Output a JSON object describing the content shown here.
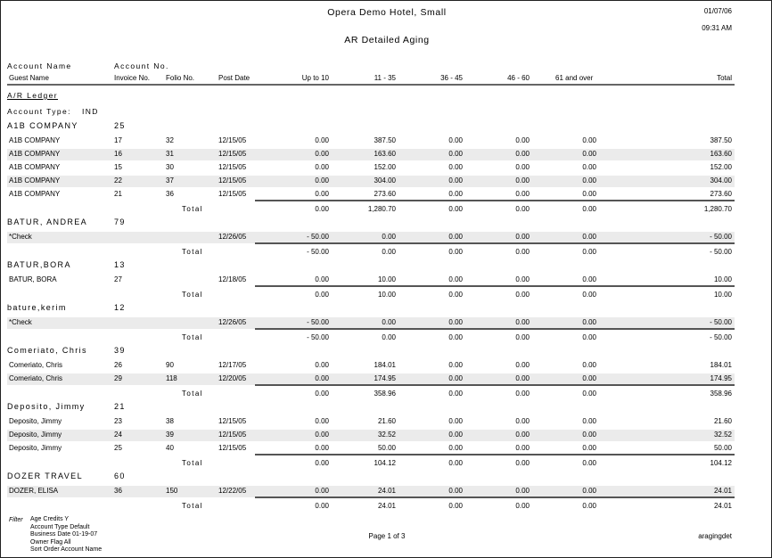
{
  "header": {
    "hotel": "Opera Demo Hotel, Small",
    "report_title": "AR Detailed Aging",
    "date": "01/07/06",
    "time": "09:31 AM"
  },
  "columns": {
    "account_name": "Account Name",
    "account_no": "Account No.",
    "guest_name": "Guest Name",
    "invoice_no": "Invoice No.",
    "folio_no": "Folio No.",
    "post_date": "Post Date",
    "up_to_10": "Up to 10",
    "d11_35": "11 - 35",
    "d36_45": "36 - 45",
    "d46_60": "46 - 60",
    "d61_over": "61 and over",
    "total": "Total"
  },
  "ledger_label": "A/R Ledger",
  "account_type_label": "Account Type:",
  "account_type": "IND",
  "total_label": "Total",
  "groups": [
    {
      "name": "A1B COMPANY",
      "account_no": "25",
      "rows": [
        {
          "guest": "A1B COMPANY",
          "invoice": "17",
          "folio": "32",
          "date": "12/15/05",
          "v": [
            "0.00",
            "387.50",
            "0.00",
            "0.00",
            "0.00",
            "387.50"
          ],
          "shaded": false
        },
        {
          "guest": "A1B COMPANY",
          "invoice": "16",
          "folio": "31",
          "date": "12/15/05",
          "v": [
            "0.00",
            "163.60",
            "0.00",
            "0.00",
            "0.00",
            "163.60"
          ],
          "shaded": true
        },
        {
          "guest": "A1B COMPANY",
          "invoice": "15",
          "folio": "30",
          "date": "12/15/05",
          "v": [
            "0.00",
            "152.00",
            "0.00",
            "0.00",
            "0.00",
            "152.00"
          ],
          "shaded": false
        },
        {
          "guest": "A1B COMPANY",
          "invoice": "22",
          "folio": "37",
          "date": "12/15/05",
          "v": [
            "0.00",
            "304.00",
            "0.00",
            "0.00",
            "0.00",
            "304.00"
          ],
          "shaded": true
        },
        {
          "guest": "A1B COMPANY",
          "invoice": "21",
          "folio": "36",
          "date": "12/15/05",
          "v": [
            "0.00",
            "273.60",
            "0.00",
            "0.00",
            "0.00",
            "273.60"
          ],
          "shaded": false
        }
      ],
      "totals": [
        "0.00",
        "1,280.70",
        "0.00",
        "0.00",
        "0.00",
        "1,280.70"
      ]
    },
    {
      "name": "BATUR, ANDREA",
      "account_no": "79",
      "rows": [
        {
          "guest": "*Check",
          "invoice": "",
          "folio": "",
          "date": "12/26/05",
          "v": [
            "- 50.00",
            "0.00",
            "0.00",
            "0.00",
            "0.00",
            "- 50.00"
          ],
          "shaded": true
        }
      ],
      "totals": [
        "- 50.00",
        "0.00",
        "0.00",
        "0.00",
        "0.00",
        "- 50.00"
      ]
    },
    {
      "name": "BATUR,BORA",
      "account_no": "13",
      "rows": [
        {
          "guest": "BATUR, BORA",
          "invoice": "27",
          "folio": "",
          "date": "12/18/05",
          "v": [
            "0.00",
            "10.00",
            "0.00",
            "0.00",
            "0.00",
            "10.00"
          ],
          "shaded": false
        }
      ],
      "totals": [
        "0.00",
        "10.00",
        "0.00",
        "0.00",
        "0.00",
        "10.00"
      ]
    },
    {
      "name": "bature,kerim",
      "account_no": "12",
      "rows": [
        {
          "guest": "*Check",
          "invoice": "",
          "folio": "",
          "date": "12/26/05",
          "v": [
            "- 50.00",
            "0.00",
            "0.00",
            "0.00",
            "0.00",
            "- 50.00"
          ],
          "shaded": true
        }
      ],
      "totals": [
        "- 50.00",
        "0.00",
        "0.00",
        "0.00",
        "0.00",
        "- 50.00"
      ]
    },
    {
      "name": "Comeriato, Chris",
      "account_no": "39",
      "rows": [
        {
          "guest": "Comeriato, Chris",
          "invoice": "26",
          "folio": "90",
          "date": "12/17/05",
          "v": [
            "0.00",
            "184.01",
            "0.00",
            "0.00",
            "0.00",
            "184.01"
          ],
          "shaded": false
        },
        {
          "guest": "Comeriato, Chris",
          "invoice": "29",
          "folio": "118",
          "date": "12/20/05",
          "v": [
            "0.00",
            "174.95",
            "0.00",
            "0.00",
            "0.00",
            "174.95"
          ],
          "shaded": true
        }
      ],
      "totals": [
        "0.00",
        "358.96",
        "0.00",
        "0.00",
        "0.00",
        "358.96"
      ]
    },
    {
      "name": "Deposito, Jimmy",
      "account_no": "21",
      "rows": [
        {
          "guest": "Deposito, Jimmy",
          "invoice": "23",
          "folio": "38",
          "date": "12/15/05",
          "v": [
            "0.00",
            "21.60",
            "0.00",
            "0.00",
            "0.00",
            "21.60"
          ],
          "shaded": false
        },
        {
          "guest": "Deposito, Jimmy",
          "invoice": "24",
          "folio": "39",
          "date": "12/15/05",
          "v": [
            "0.00",
            "32.52",
            "0.00",
            "0.00",
            "0.00",
            "32.52"
          ],
          "shaded": true
        },
        {
          "guest": "Deposito, Jimmy",
          "invoice": "25",
          "folio": "40",
          "date": "12/15/05",
          "v": [
            "0.00",
            "50.00",
            "0.00",
            "0.00",
            "0.00",
            "50.00"
          ],
          "shaded": false
        }
      ],
      "totals": [
        "0.00",
        "104.12",
        "0.00",
        "0.00",
        "0.00",
        "104.12"
      ]
    },
    {
      "name": "DOZER TRAVEL",
      "account_no": "60",
      "rows": [
        {
          "guest": "DOZER, ELISA",
          "invoice": "36",
          "folio": "150",
          "date": "12/22/05",
          "v": [
            "0.00",
            "24.01",
            "0.00",
            "0.00",
            "0.00",
            "24.01"
          ],
          "shaded": true
        }
      ],
      "totals": [
        "0.00",
        "24.01",
        "0.00",
        "0.00",
        "0.00",
        "24.01"
      ]
    }
  ],
  "footer": {
    "filter_label": "Filter",
    "filters": [
      "Age Credits Y",
      "Account Type Default",
      "Business Date 01-19-07",
      "Owner Flag All",
      "Sort Order Account Name"
    ],
    "page": "Page 1 of 3",
    "report_id": "aragingdet"
  }
}
